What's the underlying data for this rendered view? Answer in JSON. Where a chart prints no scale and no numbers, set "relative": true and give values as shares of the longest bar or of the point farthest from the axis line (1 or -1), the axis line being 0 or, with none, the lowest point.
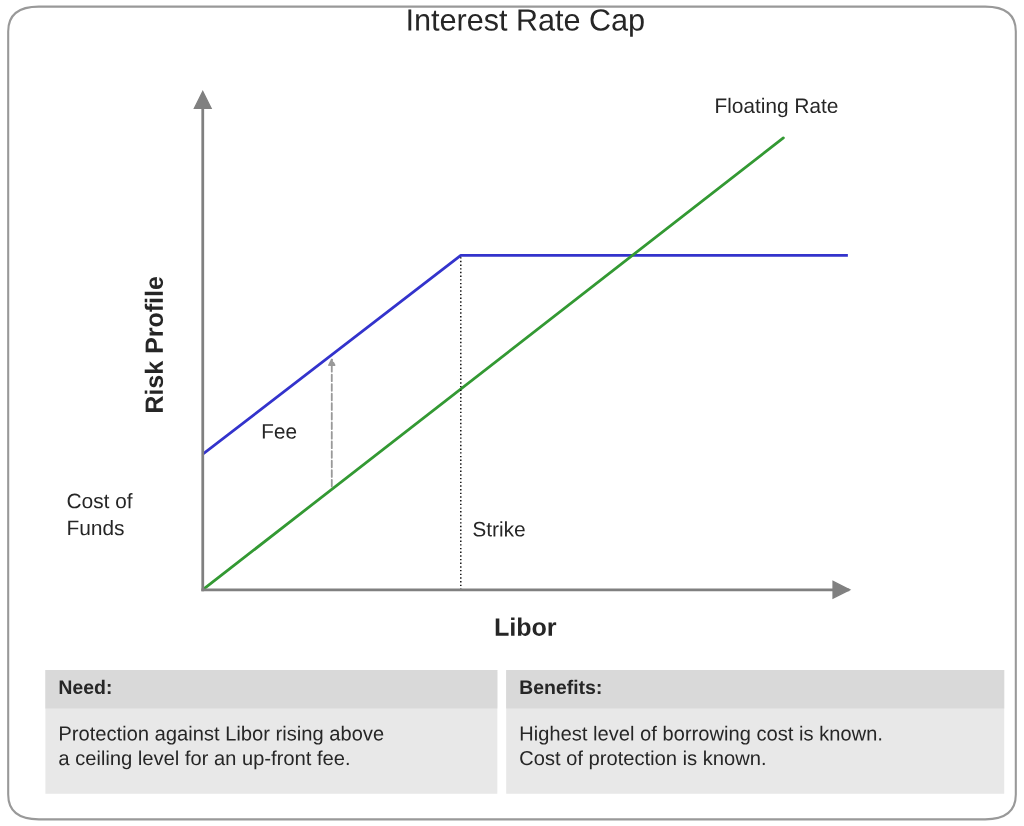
{
  "chart_data": {
    "type": "line",
    "title": "Interest Rate Cap",
    "xlabel": "Libor",
    "ylabel": "Risk Profile",
    "relative": true,
    "legend": false,
    "marker": "none",
    "line_style": "solid",
    "categories": [
      null,
      null,
      null,
      null,
      null,
      null,
      null,
      null,
      null,
      null,
      null,
      null,
      null,
      null,
      null,
      null,
      null,
      null,
      null,
      null,
      null
    ],
    "series": [
      {
        "color": "#3333cc",
        "values": [
          0.3,
          null,
          null,
          null,
          null,
          null,
          null,
          null,
          0.74,
          null,
          null,
          null,
          null,
          null,
          null,
          null,
          null,
          null,
          null,
          null,
          0.74
        ]
      },
      {
        "name": "Floating Rate",
        "color": "#339933",
        "values": [
          0,
          null,
          null,
          null,
          null,
          null,
          null,
          null,
          null,
          null,
          null,
          null,
          null,
          null,
          null,
          null,
          null,
          null,
          1,
          null,
          null
        ]
      }
    ],
    "annotations": [
      "Fee",
      "Strike",
      "Cost of\nFunds",
      "Need:",
      "Protection against Libor rising above\na ceiling level for an up-front fee.",
      "Benefits:",
      "Highest level of borrowing cost is known.\nCost of protection is known."
    ]
  }
}
